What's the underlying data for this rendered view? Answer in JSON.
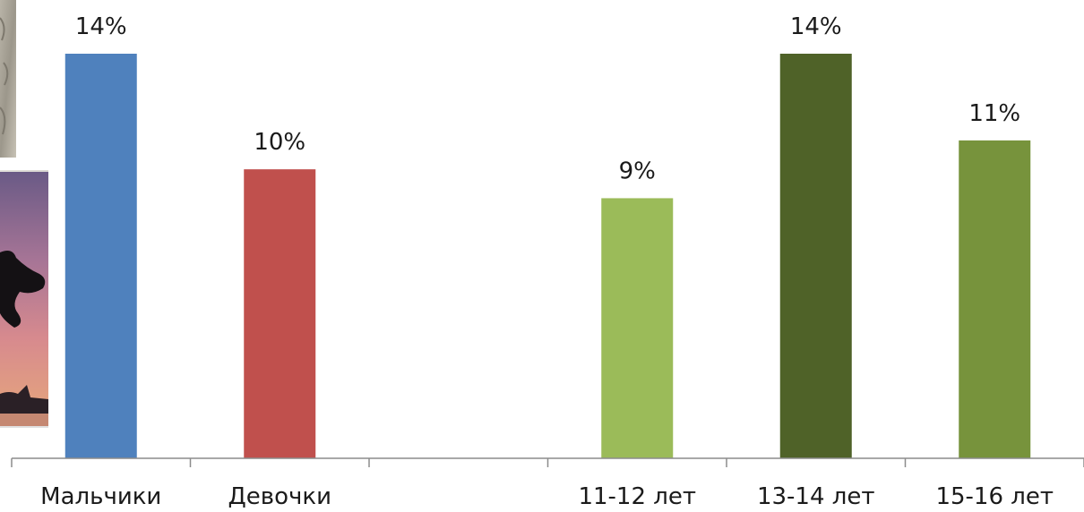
{
  "chart_data": {
    "type": "bar",
    "categories": [
      "Мальчики",
      "Девочки",
      "",
      "11-12 лет",
      "13-14 лет",
      "15-16 лет"
    ],
    "values": [
      14,
      10,
      null,
      9,
      14,
      11
    ],
    "data_labels": [
      "14%",
      "10%",
      "",
      "9%",
      "14%",
      "11%"
    ],
    "colors": [
      "#4f81bd",
      "#c0504d",
      "",
      "#9bbb59",
      "#4f6228",
      "#77933c"
    ],
    "ylim": [
      0,
      14
    ],
    "grid": false,
    "legend": "none",
    "title": "",
    "xlabel": "",
    "ylabel": ""
  },
  "decor": {
    "photo_top_left": "textured-photo-fragment",
    "photo_left": "sunset-silhouette-photo-fragment"
  }
}
